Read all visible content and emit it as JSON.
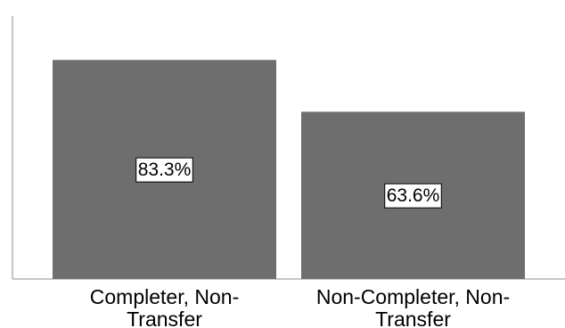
{
  "chart_data": {
    "type": "bar",
    "categories": [
      [
        "Completer, Non-",
        "Transfer"
      ],
      [
        "Non-Completer, Non-",
        "Transfer"
      ]
    ],
    "values": [
      83.3,
      63.6
    ],
    "data_labels": [
      "83.3%",
      "63.6%"
    ],
    "ylim": [
      0,
      100
    ],
    "title": "",
    "xlabel": "",
    "ylabel": "",
    "grid": false,
    "legend": "none",
    "colors": {
      "bar": "#6e6e6e",
      "axis": "#8c8c8c",
      "label_bg": "#ffffff",
      "label_border": "#000000"
    }
  }
}
